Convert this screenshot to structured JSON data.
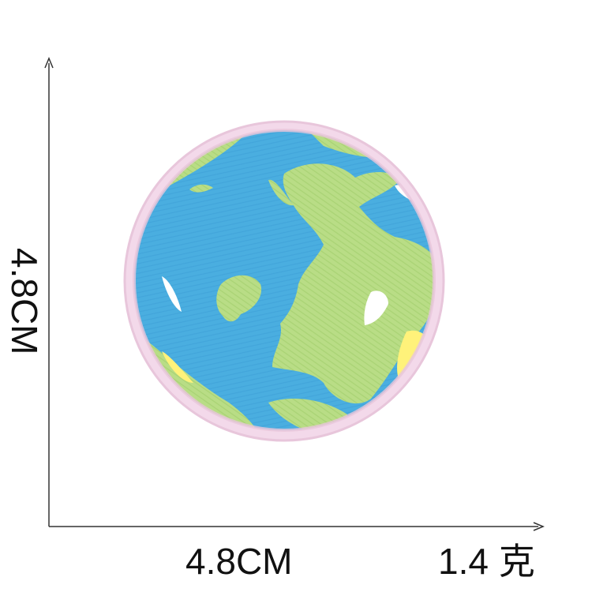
{
  "dimensions": {
    "width_label": "4.8CM",
    "height_label": "4.8CM",
    "weight_label": "1.4 克"
  },
  "patch": {
    "subject": "embroidered-earth-globe-patch",
    "colors": {
      "ocean": "#4aaee0",
      "land": "#b9dd86",
      "land_dark": "#a3cf6c",
      "border": "#f3d9ea",
      "highlight": "#fff27a",
      "cloud": "#ffffff"
    }
  },
  "axes": {
    "line_color": "#333333"
  }
}
